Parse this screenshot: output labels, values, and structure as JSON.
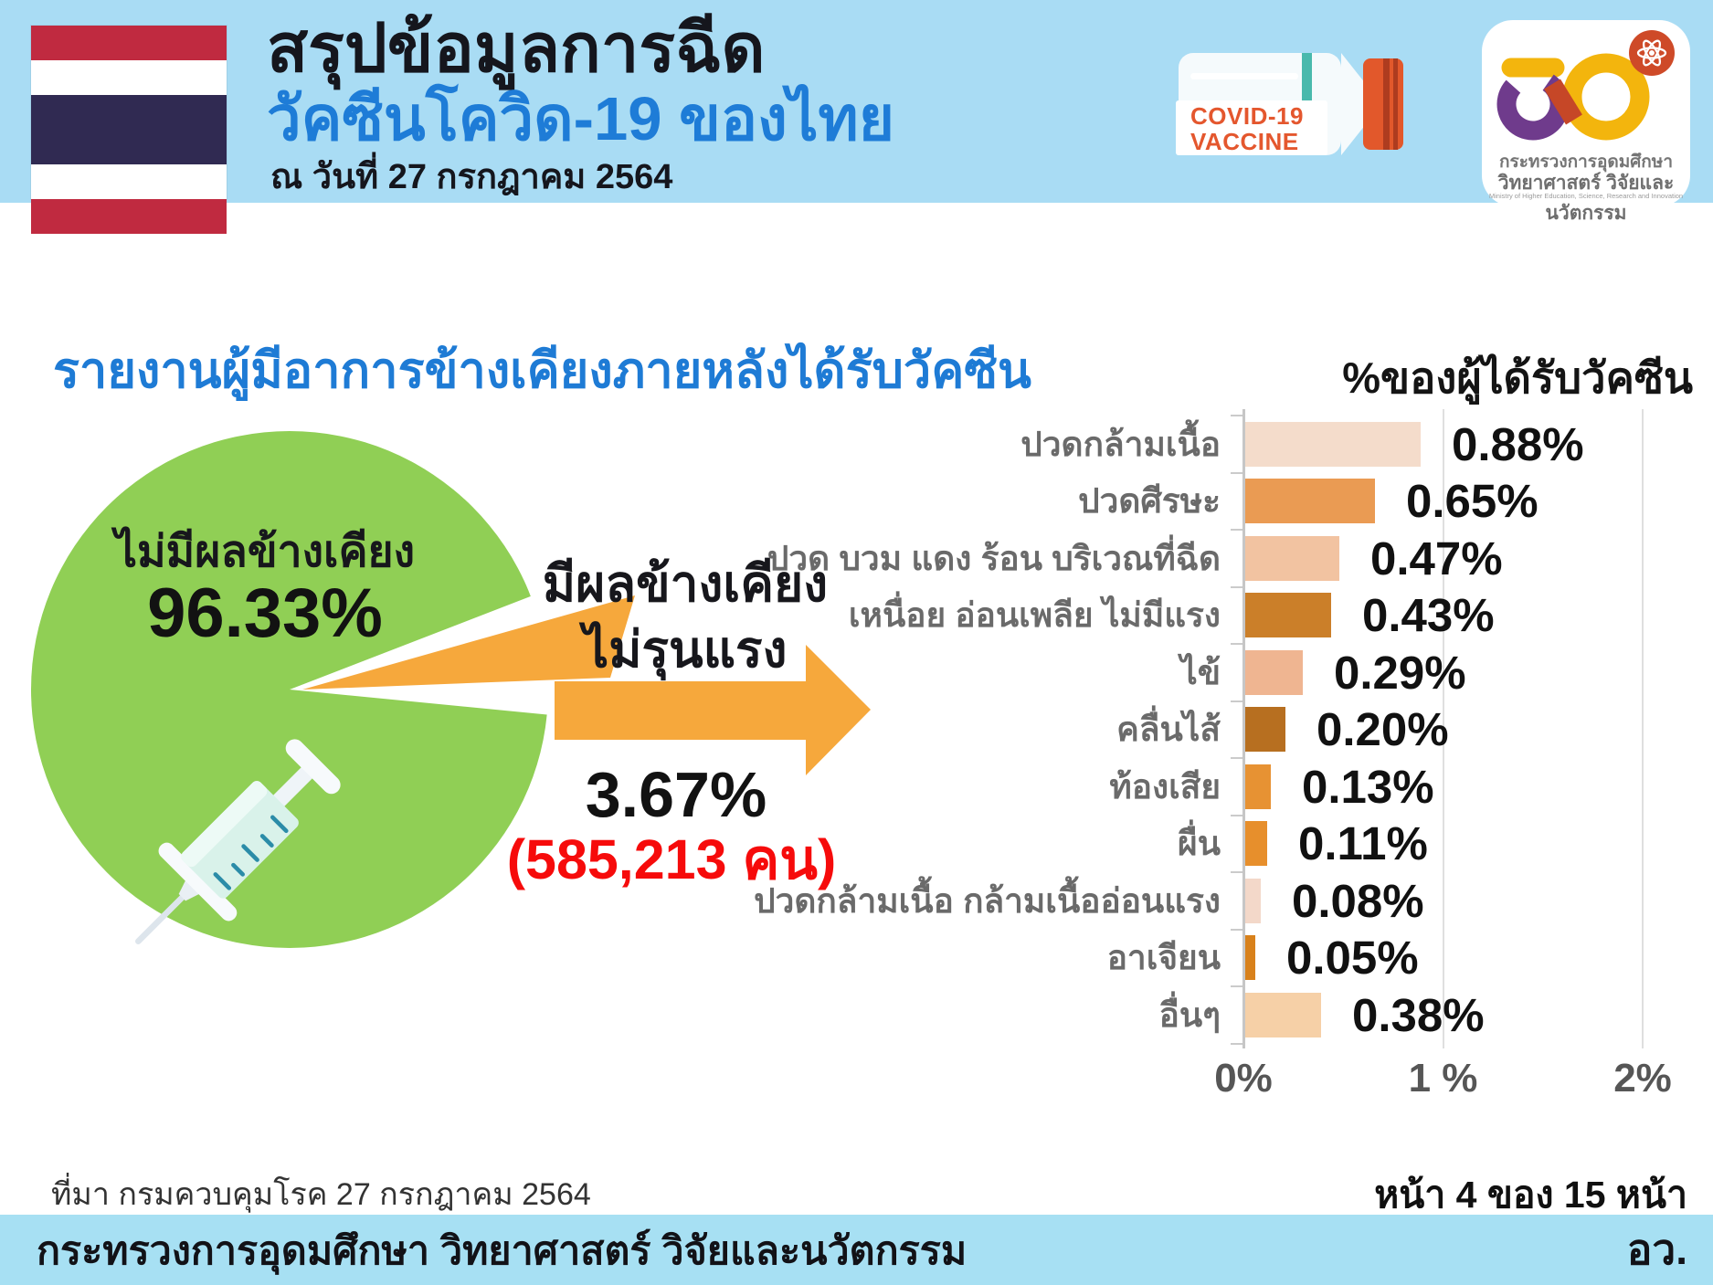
{
  "palette": {
    "band_blue": "#A9DCF4",
    "title_blue": "#1E7CD7",
    "pie_green": "#90CF55",
    "accent_orange": "#F6A83C",
    "alert_red": "#F60B0B"
  },
  "header": {
    "title_line1": "สรุปข้อมูลการฉีด",
    "title_line2": "วัคซีนโควิด-19 ของไทย",
    "date_line": "ณ วันที่ 27 กรกฎาคม 2564",
    "vaccine_bottle": {
      "line1": "COVID-19",
      "line2": "VACCINE"
    },
    "ministry_logo": {
      "line1": "กระทรวงการอุดมศึกษา",
      "line2": "วิทยาศาสตร์ วิจัยและนวัตกรรม",
      "line3": "Ministry of Higher Education, Science, Research and Innovation"
    }
  },
  "report": {
    "section_title": "รายงานผู้มีอาการข้างเคียงภายหลังได้รับวัคซีน",
    "chart_unit_label": "%ของผู้ได้รับวัคซีน"
  },
  "chart_data": [
    {
      "type": "pie",
      "title": "รายงานผู้มีอาการข้างเคียงภายหลังได้รับวัคซีน",
      "legend_position": "inside",
      "slices": [
        {
          "label": "ไม่มีผลข้างเคียง",
          "value": 96.33,
          "value_label": "96.33%",
          "color": "#90CF55"
        },
        {
          "label_line1": "มีผลข้างเคียง",
          "label_line2": "ไม่รุนแรง",
          "value": 3.67,
          "value_label": "3.67%",
          "count_label": "(585,213 คน)",
          "color": "#F6A83C"
        }
      ]
    },
    {
      "type": "bar",
      "orientation": "horizontal",
      "axis_title": "%ของผู้ได้รับวัคซีน",
      "categories": [
        "ปวดกล้ามเนื้อ",
        "ปวดศีรษะ",
        "ปวด บวม แดง ร้อน บริเวณที่ฉีด",
        "เหนื่อย อ่อนเพลีย ไม่มีแรง",
        "ไข้",
        "คลื่นไส้",
        "ท้องเสีย",
        "ผื่น",
        "ปวดกล้ามเนื้อ กล้ามเนื้ออ่อนแรง",
        "อาเจียน",
        "อื่นๆ"
      ],
      "values": [
        0.88,
        0.65,
        0.47,
        0.43,
        0.29,
        0.2,
        0.13,
        0.11,
        0.08,
        0.05,
        0.38
      ],
      "value_labels": [
        "0.88%",
        "0.65%",
        "0.47%",
        "0.43%",
        "0.29%",
        "0.20%",
        "0.13%",
        "0.11%",
        "0.08%",
        "0.05%",
        "0.38%"
      ],
      "bar_colors": [
        "#F4DCCB",
        "#EA9B53",
        "#F2C3A1",
        "#CB7F29",
        "#EFB591",
        "#B76F20",
        "#E79233",
        "#E78F2C",
        "#F3D8C9",
        "#D8811B",
        "#F6D0A7"
      ],
      "xlim": [
        0,
        2
      ],
      "x_tick_values": [
        0,
        1,
        2
      ],
      "x_tick_labels": [
        "0%",
        "1 %",
        "2%"
      ],
      "gridlines": "vertical"
    }
  ],
  "footer": {
    "source": "ที่มา กรมควบคุมโรค 27 กรกฎาคม 2564",
    "page_label": "หน้า 4 ของ 15 หน้า",
    "ministry": "กระทรวงการอุดมศึกษา วิทยาศาสตร์ วิจัยและนวัตกรรม",
    "abbr": "อว."
  }
}
